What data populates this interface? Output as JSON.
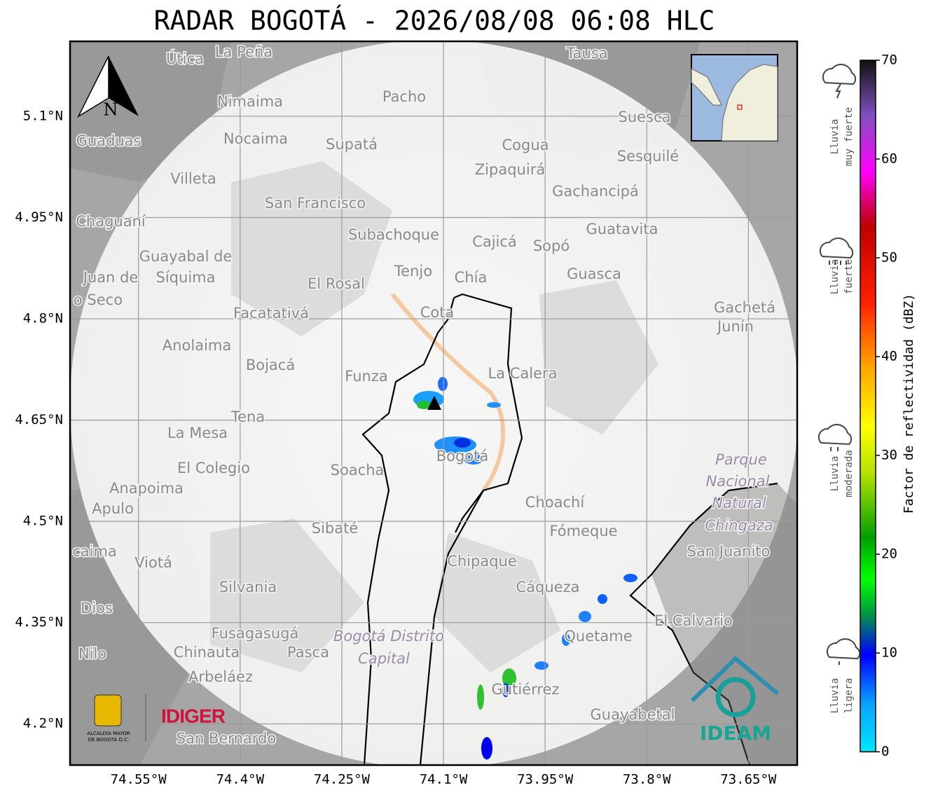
{
  "title": "RADAR BOGOTÁ - 2026/08/08 06:08 HLC",
  "map": {
    "xlim": [
      -74.651,
      -73.578
    ],
    "ylim": [
      4.139,
      5.211
    ],
    "grid": true,
    "xticks": [
      {
        "value": -74.55,
        "label": "74.55°W"
      },
      {
        "value": -74.4,
        "label": "74.4°W"
      },
      {
        "value": -74.25,
        "label": "74.25°W"
      },
      {
        "value": -74.1,
        "label": "74.1°W"
      },
      {
        "value": -73.95,
        "label": "73.95°W"
      },
      {
        "value": -73.8,
        "label": "73.8°W"
      },
      {
        "value": -73.65,
        "label": "73.65°W"
      }
    ],
    "yticks": [
      {
        "value": 5.1,
        "label": "5.1°N"
      },
      {
        "value": 4.95,
        "label": "4.95°N"
      },
      {
        "value": 4.8,
        "label": "4.8°N"
      },
      {
        "value": 4.65,
        "label": "4.65°N"
      },
      {
        "value": 4.5,
        "label": "4.5°N"
      },
      {
        "value": 4.35,
        "label": "4.35°N"
      },
      {
        "value": 4.2,
        "label": "4.2°N"
      }
    ],
    "north_label": "N",
    "places": [
      "La Peña",
      "Útica",
      "Tausa",
      "Pacho",
      "Nimaima",
      "Suesca",
      "Guaduas",
      "Nocaima",
      "Supatá",
      "Cogua",
      "Sesquilé",
      "Zipaquirá",
      "Villeta",
      "Gachancipá",
      "San Francisco",
      "Chaguaní",
      "Guatavita",
      "Subachoque",
      "Cajicá",
      "Sopó",
      "Guayabal de",
      "Síquima",
      "Tenjo",
      "Chía",
      "Guasca",
      "El Rosal",
      "Juan de",
      "o Seco",
      "Gachetá",
      "Junín",
      "Facatativá",
      "Cota",
      "Anolaima",
      "Bojacá",
      "Funza",
      "La Calera",
      "Tena",
      "La Mesa",
      "Bogotá",
      "Soacha",
      "El Colegio",
      "Parque",
      "Nacional",
      "Natural",
      "Chingaza",
      "Anapoima",
      "Apulo",
      "Choachí",
      "Sibaté",
      "Fómeque",
      "San Juanito",
      "caima",
      "Viotá",
      "Chipaque",
      "Silvania",
      "Cáqueza",
      "Dios",
      "El Calvario",
      "Fusagasugá",
      "Bogotá Distrito",
      "Capital",
      "Quetame",
      "Nilo",
      "Chinauta",
      "Pasca",
      "Arbeláez",
      "Gutiérrez",
      "Guayabetal",
      "San Bernardo"
    ]
  },
  "colorbar": {
    "label": "Factor de reflectividad (dBZ)",
    "lim": [
      0,
      70
    ],
    "ticks": [
      0,
      10,
      20,
      30,
      40,
      50,
      60,
      70
    ]
  },
  "intensity": [
    [
      "Lluvia",
      "muy fuerte"
    ],
    [
      "Lluvia",
      "fuerte"
    ],
    [
      "Lluvia",
      "moderada"
    ],
    [
      "Lluvia",
      "ligera"
    ]
  ],
  "logos": {
    "alcaldia": [
      "ALCALDÍA MAYOR",
      "DE BOGOTÁ D.C."
    ],
    "idiger": "IDIGER",
    "ideam": "IDEAM"
  }
}
